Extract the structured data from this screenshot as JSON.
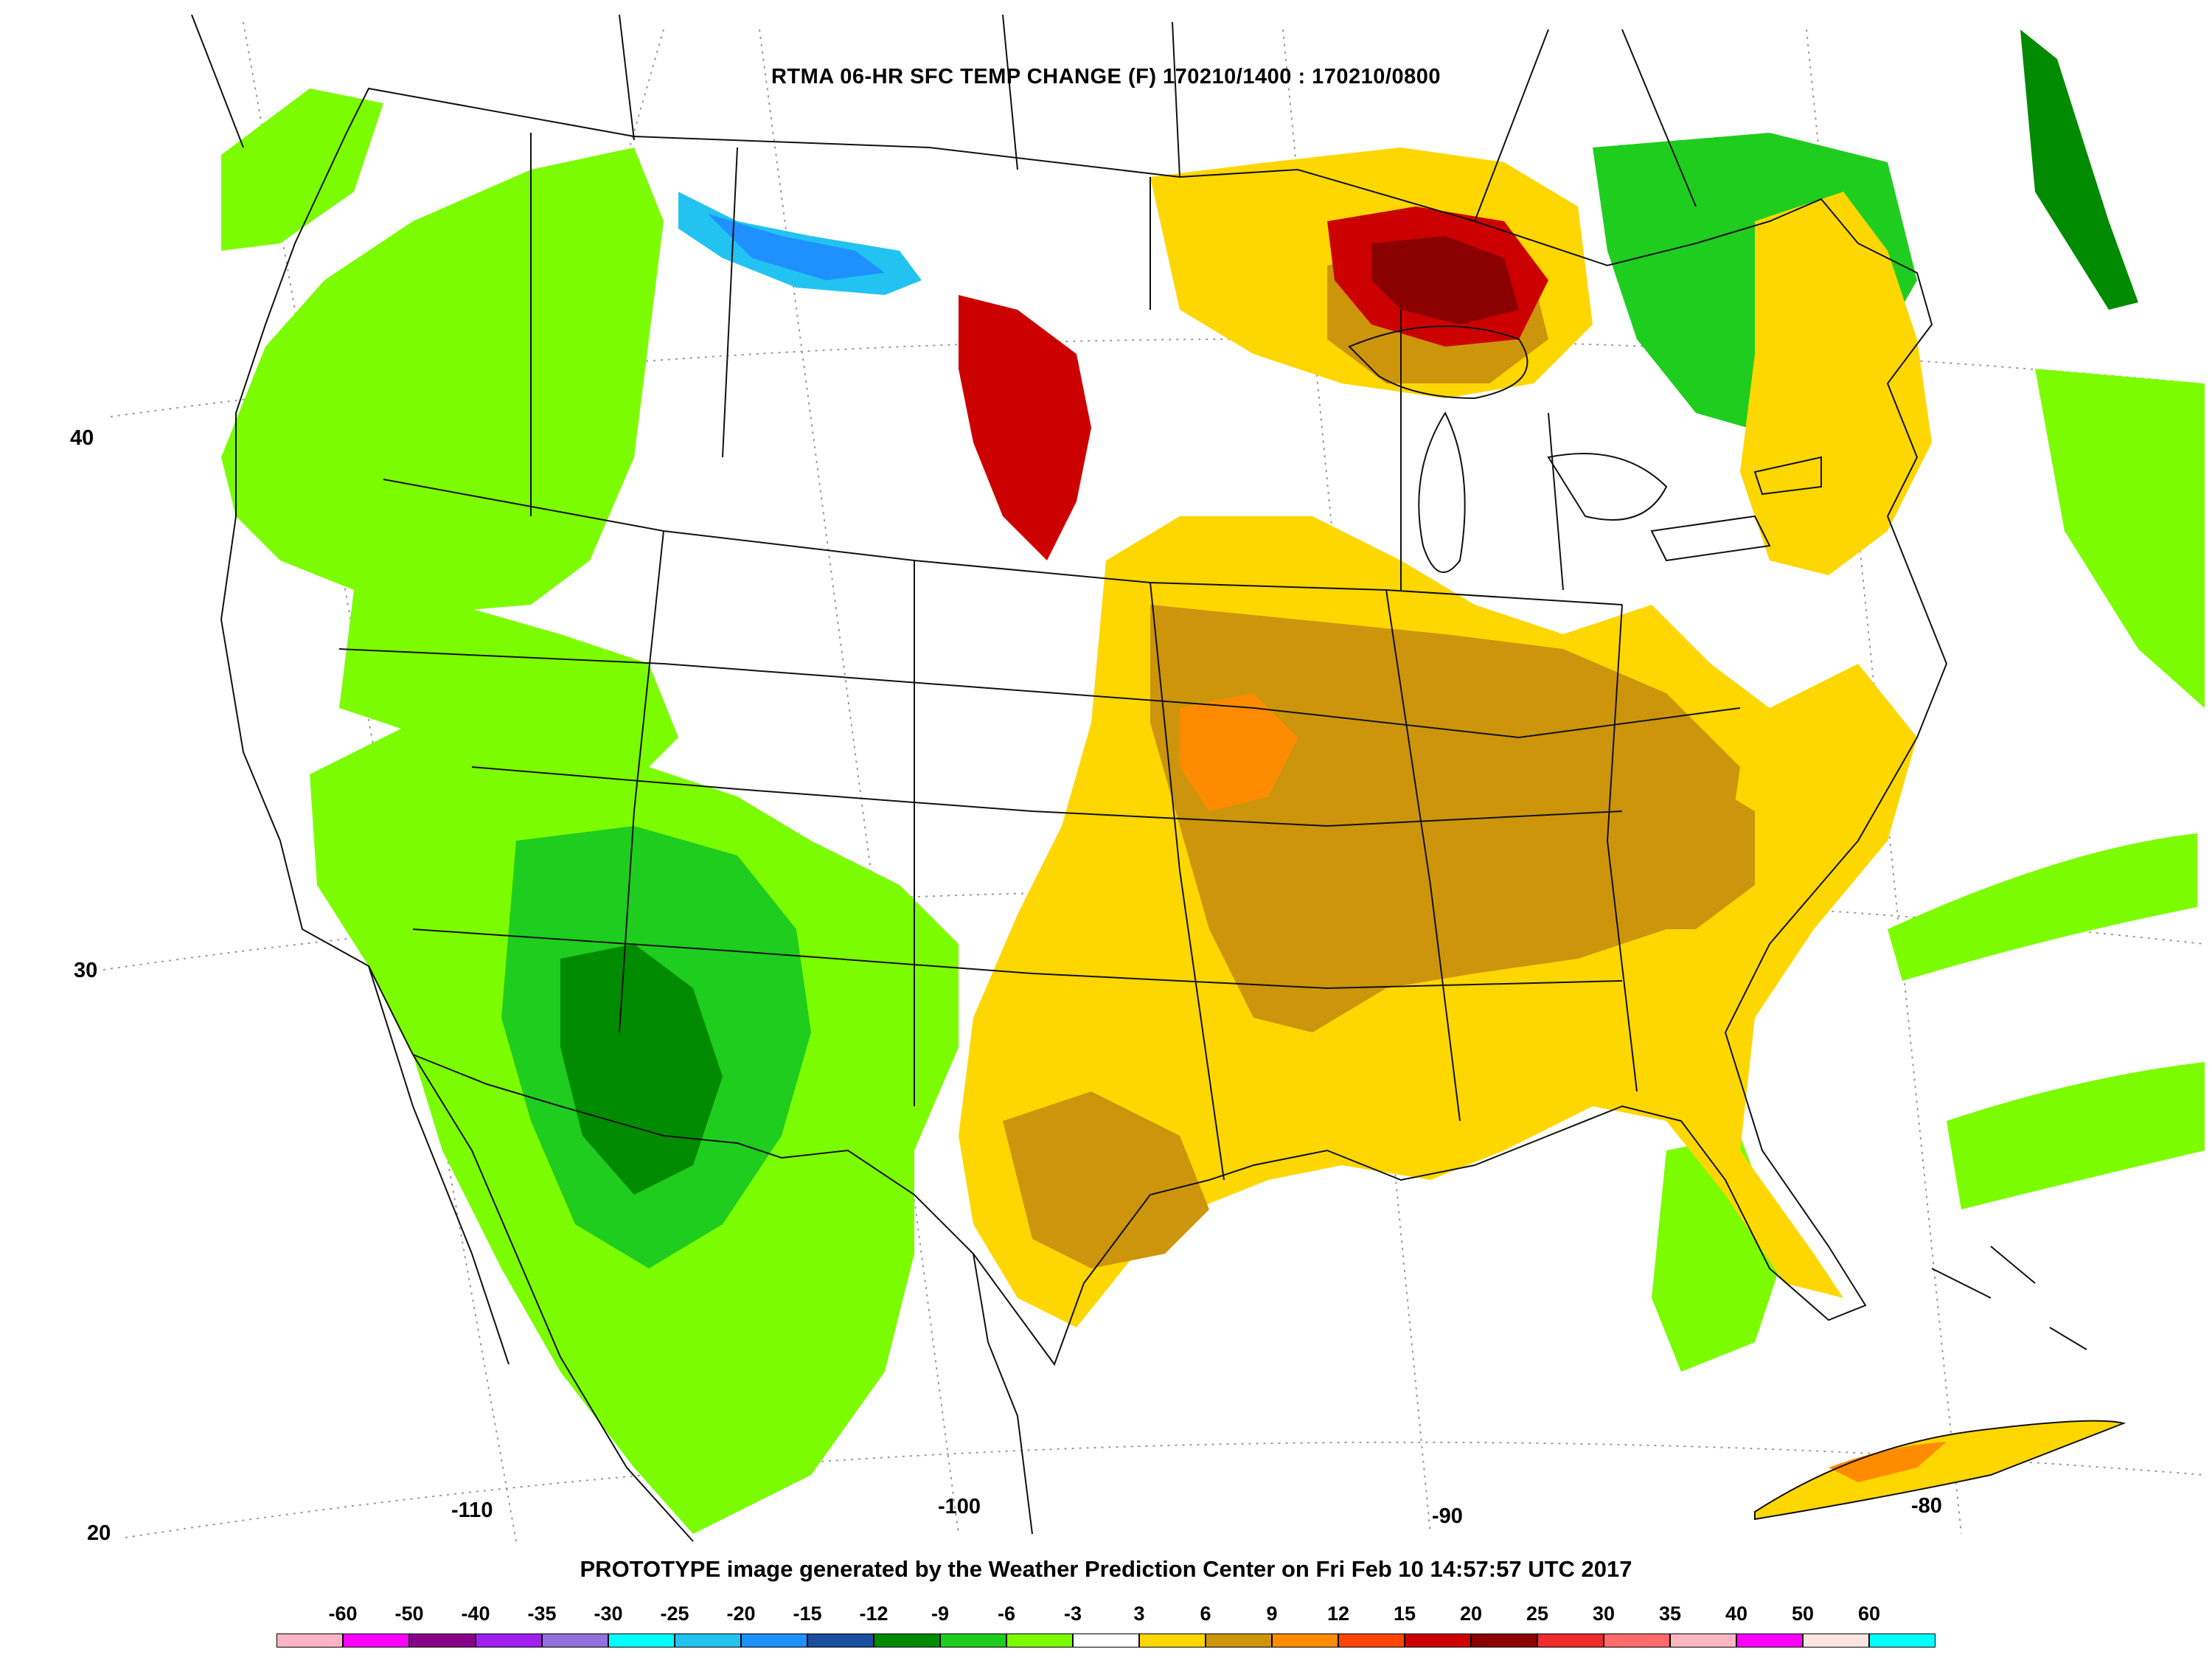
{
  "title": "RTMA 06-HR SFC TEMP CHANGE (F) 170210/1400 : 170210/0800",
  "footer": "PROTOTYPE image generated by the Weather Prediction Center on Fri Feb 10 14:57:57 UTC 2017",
  "latitude_labels": [
    "40",
    "30",
    "20"
  ],
  "longitude_labels": [
    "-110",
    "-100",
    "-90",
    "-80"
  ],
  "legend": {
    "labels": [
      "-60",
      "-50",
      "-40",
      "-35",
      "-30",
      "-25",
      "-20",
      "-15",
      "-12",
      "-9",
      "-6",
      "-3",
      "3",
      "6",
      "9",
      "12",
      "15",
      "20",
      "25",
      "30",
      "35",
      "40",
      "50",
      "60"
    ],
    "colors": [
      "#ffb3c6",
      "#ff00ff",
      "#8b008b",
      "#a020f0",
      "#9370db",
      "#00ffff",
      "#22c3f0",
      "#1e90ff",
      "#1a4fa0",
      "#008b00",
      "#1fcd1f",
      "#7cfc00",
      "#ffffff",
      "#ffd700",
      "#cd950c",
      "#ff8c00",
      "#ff4500",
      "#cd0000",
      "#8b0000",
      "#ee2c2c",
      "#ff6a6a",
      "#ffb6c1",
      "#ff00ff",
      "#ffe4e1",
      "#00ffff"
    ]
  },
  "palette": {
    "cool_light": "#7cfc00",
    "cool_mid": "#1fcd1f",
    "cool_deep": "#008b00",
    "cold_blue": "#1e90ff",
    "cold_cyan": "#22c3f0",
    "warm_yellow": "#ffd700",
    "warm_tan": "#cd950c",
    "warm_orange": "#ff8c00",
    "warm_red": "#cd0000",
    "warm_darkred": "#8b0000"
  }
}
